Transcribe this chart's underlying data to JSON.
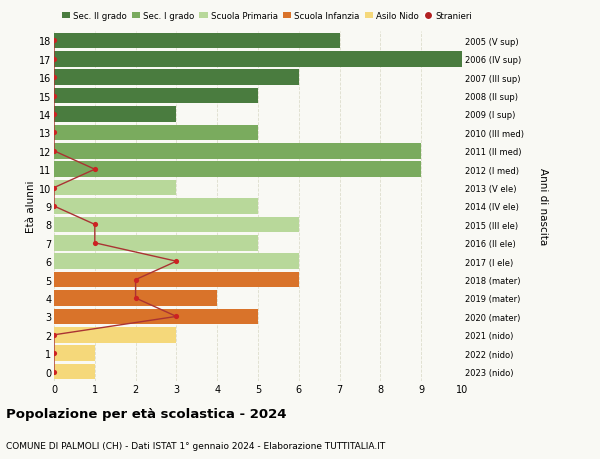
{
  "ages": [
    18,
    17,
    16,
    15,
    14,
    13,
    12,
    11,
    10,
    9,
    8,
    7,
    6,
    5,
    4,
    3,
    2,
    1,
    0
  ],
  "right_labels": [
    "2005 (V sup)",
    "2006 (IV sup)",
    "2007 (III sup)",
    "2008 (II sup)",
    "2009 (I sup)",
    "2010 (III med)",
    "2011 (II med)",
    "2012 (I med)",
    "2013 (V ele)",
    "2014 (IV ele)",
    "2015 (III ele)",
    "2016 (II ele)",
    "2017 (I ele)",
    "2018 (mater)",
    "2019 (mater)",
    "2020 (mater)",
    "2021 (nido)",
    "2022 (nido)",
    "2023 (nido)"
  ],
  "bar_values": [
    7,
    10,
    6,
    5,
    3,
    5,
    9,
    9,
    3,
    5,
    6,
    5,
    6,
    6,
    4,
    5,
    3,
    1,
    1
  ],
  "bar_colors": [
    "#4a7c3f",
    "#4a7c3f",
    "#4a7c3f",
    "#4a7c3f",
    "#4a7c3f",
    "#7aab5e",
    "#7aab5e",
    "#7aab5e",
    "#b8d89a",
    "#b8d89a",
    "#b8d89a",
    "#b8d89a",
    "#b8d89a",
    "#d9732a",
    "#d9732a",
    "#d9732a",
    "#f5d87a",
    "#f5d87a",
    "#f5d87a"
  ],
  "stranieri_values": [
    0,
    0,
    0,
    0,
    0,
    0,
    0,
    1,
    0,
    0,
    1,
    1,
    3,
    2,
    2,
    3,
    0,
    0,
    0
  ],
  "title": "Popolazione per età scolastica - 2024",
  "subtitle": "COMUNE DI PALMOLI (CH) - Dati ISTAT 1° gennaio 2024 - Elaborazione TUTTITALIA.IT",
  "ylabel_left": "Età alunni",
  "ylabel_right": "Anni di nascita",
  "xlim": [
    0,
    10
  ],
  "legend_labels": [
    "Sec. II grado",
    "Sec. I grado",
    "Scuola Primaria",
    "Scuola Infanzia",
    "Asilo Nido",
    "Stranieri"
  ],
  "legend_colors": [
    "#4a7c3f",
    "#7aab5e",
    "#b8d89a",
    "#d9732a",
    "#f5d87a",
    "#b22222"
  ],
  "bg_color": "#f9f9f4",
  "grid_color": "#ddddcc",
  "stranieri_line_color": "#aa3333",
  "stranieri_dot_color": "#cc2222"
}
